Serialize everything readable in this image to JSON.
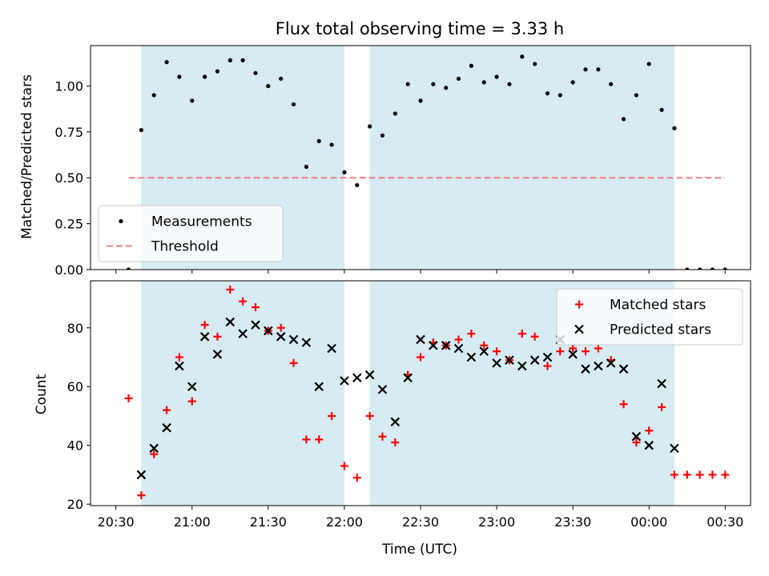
{
  "chart_data": {
    "title": "Flux total observing time = 3.33 h",
    "xlabel": "Time (UTC)",
    "x_unit": "minutes after 20:30 UTC",
    "xlim": [
      -10,
      250
    ],
    "x_ticks": [
      {
        "x": 0,
        "label": "20:30"
      },
      {
        "x": 30,
        "label": "21:00"
      },
      {
        "x": 60,
        "label": "21:30"
      },
      {
        "x": 90,
        "label": "22:00"
      },
      {
        "x": 120,
        "label": "22:30"
      },
      {
        "x": 150,
        "label": "23:00"
      },
      {
        "x": 180,
        "label": "23:30"
      },
      {
        "x": 210,
        "label": "00:00"
      },
      {
        "x": 240,
        "label": "00:30"
      }
    ],
    "shaded_spans": [
      [
        10,
        90
      ],
      [
        100,
        220
      ]
    ],
    "shade_color": "#add8e6",
    "panels": [
      {
        "type": "scatter",
        "ylabel": "Matched/Predicted stars",
        "ylim": [
          0,
          1.22
        ],
        "yticks": [
          0.0,
          0.25,
          0.5,
          0.75,
          1.0
        ],
        "ytick_labels": [
          "0.00",
          "0.25",
          "0.50",
          "0.75",
          "1.00"
        ],
        "legend_position": "lower-left",
        "threshold": {
          "name": "Threshold",
          "y": 0.5,
          "x_range": [
            5,
            240
          ],
          "color": "#f08080"
        },
        "series": [
          {
            "name": "Measurements",
            "marker": "dot",
            "color": "#000000",
            "x": [
              5,
              10,
              15,
              20,
              25,
              30,
              35,
              40,
              45,
              50,
              55,
              60,
              65,
              70,
              75,
              80,
              85,
              90,
              95,
              100,
              105,
              110,
              115,
              120,
              125,
              130,
              135,
              140,
              145,
              150,
              155,
              160,
              165,
              170,
              175,
              180,
              185,
              190,
              195,
              200,
              205,
              210,
              215,
              220,
              225,
              230,
              235,
              240
            ],
            "y": [
              0.0,
              0.76,
              0.95,
              1.13,
              1.05,
              0.92,
              1.05,
              1.08,
              1.14,
              1.14,
              1.07,
              1.0,
              1.04,
              0.9,
              0.56,
              0.7,
              0.68,
              0.53,
              0.46,
              0.78,
              0.73,
              0.85,
              1.01,
              0.92,
              1.01,
              0.99,
              1.04,
              1.11,
              1.02,
              1.05,
              1.01,
              1.16,
              1.12,
              0.96,
              0.95,
              1.02,
              1.09,
              1.09,
              1.01,
              0.82,
              0.95,
              1.12,
              0.87,
              0.77,
              0.0,
              0.0,
              0.0,
              0.0
            ]
          }
        ]
      },
      {
        "type": "scatter",
        "ylabel": "Count",
        "ylim": [
          19.5,
          96
        ],
        "yticks": [
          20,
          40,
          60,
          80
        ],
        "ytick_labels": [
          "20",
          "40",
          "60",
          "80"
        ],
        "legend_position": "upper-right",
        "series": [
          {
            "name": "Matched stars",
            "marker": "plus",
            "color": "#ff0000",
            "x": [
              5,
              10,
              15,
              20,
              25,
              30,
              35,
              40,
              45,
              50,
              55,
              60,
              65,
              70,
              75,
              80,
              85,
              90,
              95,
              100,
              105,
              110,
              115,
              120,
              125,
              130,
              135,
              140,
              145,
              150,
              155,
              160,
              165,
              170,
              175,
              180,
              185,
              190,
              195,
              200,
              205,
              210,
              215,
              220,
              225,
              230,
              235,
              240
            ],
            "y": [
              56,
              23,
              37,
              52,
              70,
              55,
              81,
              77,
              93,
              89,
              87,
              79,
              80,
              68,
              42,
              42,
              50,
              33,
              29,
              50,
              43,
              41,
              64,
              70,
              75,
              74,
              76,
              78,
              74,
              72,
              69,
              78,
              77,
              67,
              72,
              73,
              72,
              73,
              69,
              54,
              41,
              45,
              53,
              30,
              30,
              30,
              30,
              30
            ]
          },
          {
            "name": "Predicted stars",
            "marker": "x",
            "color": "#000000",
            "x": [
              10,
              15,
              20,
              25,
              30,
              35,
              40,
              45,
              50,
              55,
              60,
              65,
              70,
              75,
              80,
              85,
              90,
              95,
              100,
              105,
              110,
              115,
              120,
              125,
              130,
              135,
              140,
              145,
              150,
              155,
              160,
              165,
              170,
              175,
              180,
              185,
              190,
              195,
              200,
              205,
              210,
              215,
              220
            ],
            "y": [
              30,
              39,
              46,
              67,
              60,
              77,
              71,
              82,
              78,
              81,
              79,
              77,
              76,
              75,
              60,
              73,
              62,
              63,
              64,
              59,
              48,
              63,
              76,
              74,
              74,
              73,
              70,
              72,
              68,
              69,
              67,
              69,
              70,
              76,
              71,
              66,
              67,
              68,
              66,
              43,
              40,
              61,
              39
            ]
          }
        ]
      }
    ]
  }
}
